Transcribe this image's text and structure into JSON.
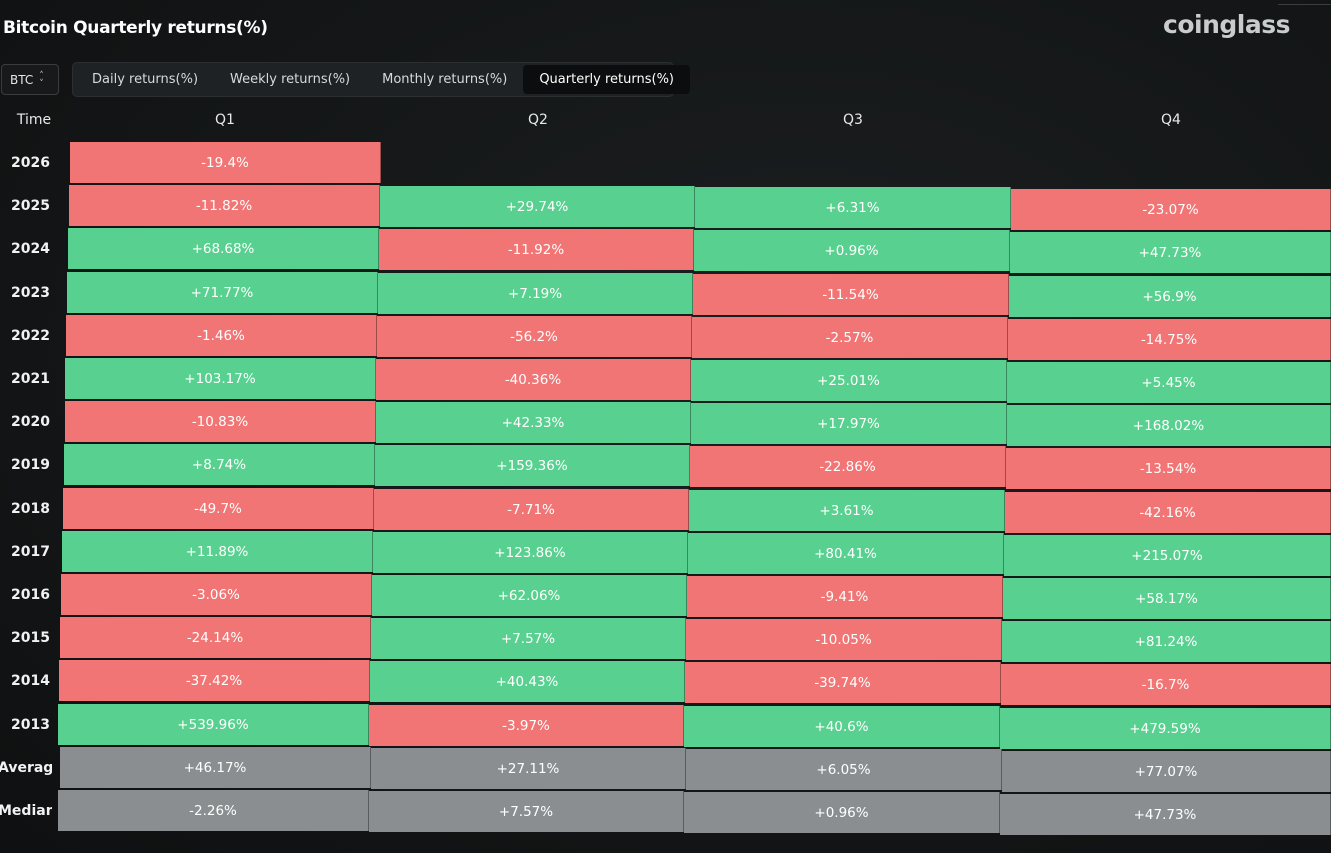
{
  "title": "Bitcoin Quarterly returns(%)",
  "brand": "coinglass",
  "coin_select": {
    "value": "BTC"
  },
  "tabs": [
    {
      "label": "Daily returns(%)",
      "active": false
    },
    {
      "label": "Weekly returns(%)",
      "active": false
    },
    {
      "label": "Monthly returns(%)",
      "active": false
    },
    {
      "label": "Quarterly returns(%)",
      "active": true
    }
  ],
  "table": {
    "headers": [
      "Time",
      "Q1",
      "Q2",
      "Q3",
      "Q4"
    ],
    "rows": [
      {
        "year": "2026",
        "values": [
          "-19.4%",
          "",
          "",
          ""
        ]
      },
      {
        "year": "2025",
        "values": [
          "-11.82%",
          "+29.74%",
          "+6.31%",
          "-23.07%"
        ]
      },
      {
        "year": "2024",
        "values": [
          "+68.68%",
          "-11.92%",
          "+0.96%",
          "+47.73%"
        ]
      },
      {
        "year": "2023",
        "values": [
          "+71.77%",
          "+7.19%",
          "-11.54%",
          "+56.9%"
        ]
      },
      {
        "year": "2022",
        "values": [
          "-1.46%",
          "-56.2%",
          "-2.57%",
          "-14.75%"
        ]
      },
      {
        "year": "2021",
        "values": [
          "+103.17%",
          "-40.36%",
          "+25.01%",
          "+5.45%"
        ]
      },
      {
        "year": "2020",
        "values": [
          "-10.83%",
          "+42.33%",
          "+17.97%",
          "+168.02%"
        ]
      },
      {
        "year": "2019",
        "values": [
          "+8.74%",
          "+159.36%",
          "-22.86%",
          "-13.54%"
        ]
      },
      {
        "year": "2018",
        "values": [
          "-49.7%",
          "-7.71%",
          "+3.61%",
          "-42.16%"
        ]
      },
      {
        "year": "2017",
        "values": [
          "+11.89%",
          "+123.86%",
          "+80.41%",
          "+215.07%"
        ]
      },
      {
        "year": "2016",
        "values": [
          "-3.06%",
          "+62.06%",
          "-9.41%",
          "+58.17%"
        ]
      },
      {
        "year": "2015",
        "values": [
          "-24.14%",
          "+7.57%",
          "-10.05%",
          "+81.24%"
        ]
      },
      {
        "year": "2014",
        "values": [
          "-37.42%",
          "+40.43%",
          "-39.74%",
          "-16.7%"
        ]
      },
      {
        "year": "2013",
        "values": [
          "+539.96%",
          "-3.97%",
          "+40.6%",
          "+479.59%"
        ]
      }
    ],
    "stats": [
      {
        "label": "Average",
        "values": [
          "+46.17%",
          "+27.11%",
          "+6.05%",
          "+77.07%"
        ]
      },
      {
        "label": "Median",
        "values": [
          "-2.26%",
          "+7.57%",
          "+0.96%",
          "+47.73%"
        ]
      }
    ]
  },
  "colors": {
    "positive": "#58d08f",
    "negative": "#f07574",
    "stat": "#8b8e90"
  }
}
